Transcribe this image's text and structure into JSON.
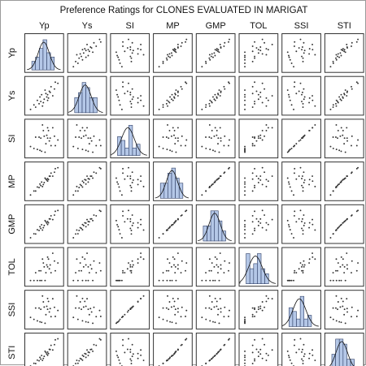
{
  "chart_data": {
    "type": "scatter",
    "title": "Preference Ratings for CLONES EVALUATED IN MARIGAT",
    "variables": [
      "Yp",
      "Ys",
      "SI",
      "MP",
      "GMP",
      "TOL",
      "SSI",
      "STI"
    ],
    "diagonal": "histogram with normal curve",
    "colors": {
      "bar_fill": "#b4c7e7",
      "bar_edge": "#2f3f66",
      "point": "#333333",
      "panel_border": "#333333"
    },
    "observations": [
      {
        "Yp": 4.2,
        "Ys": 3.1,
        "SI": 0.26,
        "MP": 3.65,
        "GMP": 3.61,
        "TOL": 1.1,
        "SSI": 1.02,
        "STI": 0.83
      },
      {
        "Yp": 5.0,
        "Ys": 4.2,
        "SI": 0.16,
        "MP": 4.6,
        "GMP": 4.58,
        "TOL": 0.8,
        "SSI": 0.63,
        "STI": 1.35
      },
      {
        "Yp": 3.6,
        "Ys": 2.7,
        "SI": 0.25,
        "MP": 3.15,
        "GMP": 3.12,
        "TOL": 0.9,
        "SSI": 0.98,
        "STI": 0.62
      },
      {
        "Yp": 4.6,
        "Ys": 3.0,
        "SI": 0.35,
        "MP": 3.8,
        "GMP": 3.71,
        "TOL": 1.6,
        "SSI": 1.37,
        "STI": 0.88
      },
      {
        "Yp": 3.9,
        "Ys": 3.5,
        "SI": 0.1,
        "MP": 3.7,
        "GMP": 3.69,
        "TOL": 0.4,
        "SSI": 0.4,
        "STI": 0.87
      },
      {
        "Yp": 5.4,
        "Ys": 4.0,
        "SI": 0.26,
        "MP": 4.7,
        "GMP": 4.65,
        "TOL": 1.4,
        "SSI": 1.01,
        "STI": 1.38
      },
      {
        "Yp": 3.2,
        "Ys": 2.4,
        "SI": 0.25,
        "MP": 2.8,
        "GMP": 2.77,
        "TOL": 0.8,
        "SSI": 0.98,
        "STI": 0.49
      },
      {
        "Yp": 4.8,
        "Ys": 3.8,
        "SI": 0.21,
        "MP": 4.3,
        "GMP": 4.27,
        "TOL": 1.0,
        "SSI": 0.82,
        "STI": 1.16
      },
      {
        "Yp": 4.0,
        "Ys": 2.5,
        "SI": 0.38,
        "MP": 3.25,
        "GMP": 3.16,
        "TOL": 1.5,
        "SSI": 1.47,
        "STI": 0.64
      },
      {
        "Yp": 5.8,
        "Ys": 4.5,
        "SI": 0.22,
        "MP": 5.15,
        "GMP": 5.11,
        "TOL": 1.3,
        "SSI": 0.88,
        "STI": 1.66
      },
      {
        "Yp": 4.4,
        "Ys": 3.6,
        "SI": 0.18,
        "MP": 4.0,
        "GMP": 3.98,
        "TOL": 0.8,
        "SSI": 0.71,
        "STI": 1.01
      },
      {
        "Yp": 3.4,
        "Ys": 3.0,
        "SI": 0.12,
        "MP": 3.2,
        "GMP": 3.19,
        "TOL": 0.4,
        "SSI": 0.46,
        "STI": 0.65
      },
      {
        "Yp": 5.2,
        "Ys": 3.4,
        "SI": 0.35,
        "MP": 4.3,
        "GMP": 4.2,
        "TOL": 1.8,
        "SSI": 1.36,
        "STI": 1.13
      },
      {
        "Yp": 4.5,
        "Ys": 3.3,
        "SI": 0.27,
        "MP": 3.9,
        "GMP": 3.85,
        "TOL": 1.2,
        "SSI": 1.05,
        "STI": 0.94
      },
      {
        "Yp": 3.8,
        "Ys": 2.9,
        "SI": 0.24,
        "MP": 3.35,
        "GMP": 3.32,
        "TOL": 0.9,
        "SSI": 0.93,
        "STI": 0.7
      },
      {
        "Yp": 4.9,
        "Ys": 3.7,
        "SI": 0.24,
        "MP": 4.3,
        "GMP": 4.26,
        "TOL": 1.2,
        "SSI": 0.96,
        "STI": 1.15
      },
      {
        "Yp": 4.3,
        "Ys": 3.9,
        "SI": 0.09,
        "MP": 4.1,
        "GMP": 4.1,
        "TOL": 0.4,
        "SSI": 0.36,
        "STI": 1.07
      },
      {
        "Yp": 3.0,
        "Ys": 2.6,
        "SI": 0.13,
        "MP": 2.8,
        "GMP": 2.79,
        "TOL": 0.4,
        "SSI": 0.52,
        "STI": 0.5
      },
      {
        "Yp": 4.7,
        "Ys": 3.2,
        "SI": 0.32,
        "MP": 3.95,
        "GMP": 3.88,
        "TOL": 1.5,
        "SSI": 1.25,
        "STI": 0.96
      },
      {
        "Yp": 5.5,
        "Ys": 4.6,
        "SI": 0.16,
        "MP": 5.05,
        "GMP": 5.03,
        "TOL": 0.9,
        "SSI": 0.64,
        "STI": 1.61
      },
      {
        "Yp": 4.1,
        "Ys": 2.8,
        "SI": 0.32,
        "MP": 3.45,
        "GMP": 3.39,
        "TOL": 1.3,
        "SSI": 1.23,
        "STI": 0.73
      },
      {
        "Yp": 3.7,
        "Ys": 3.3,
        "SI": 0.11,
        "MP": 3.5,
        "GMP": 3.49,
        "TOL": 0.4,
        "SSI": 0.42,
        "STI": 0.78
      },
      {
        "Yp": 4.6,
        "Ys": 3.5,
        "SI": 0.24,
        "MP": 4.05,
        "GMP": 4.01,
        "TOL": 1.1,
        "SSI": 0.93,
        "STI": 1.03
      },
      {
        "Yp": 2.6,
        "Ys": 2.2,
        "SI": 0.15,
        "MP": 2.4,
        "GMP": 2.39,
        "TOL": 0.4,
        "SSI": 0.6,
        "STI": 0.37
      }
    ]
  }
}
